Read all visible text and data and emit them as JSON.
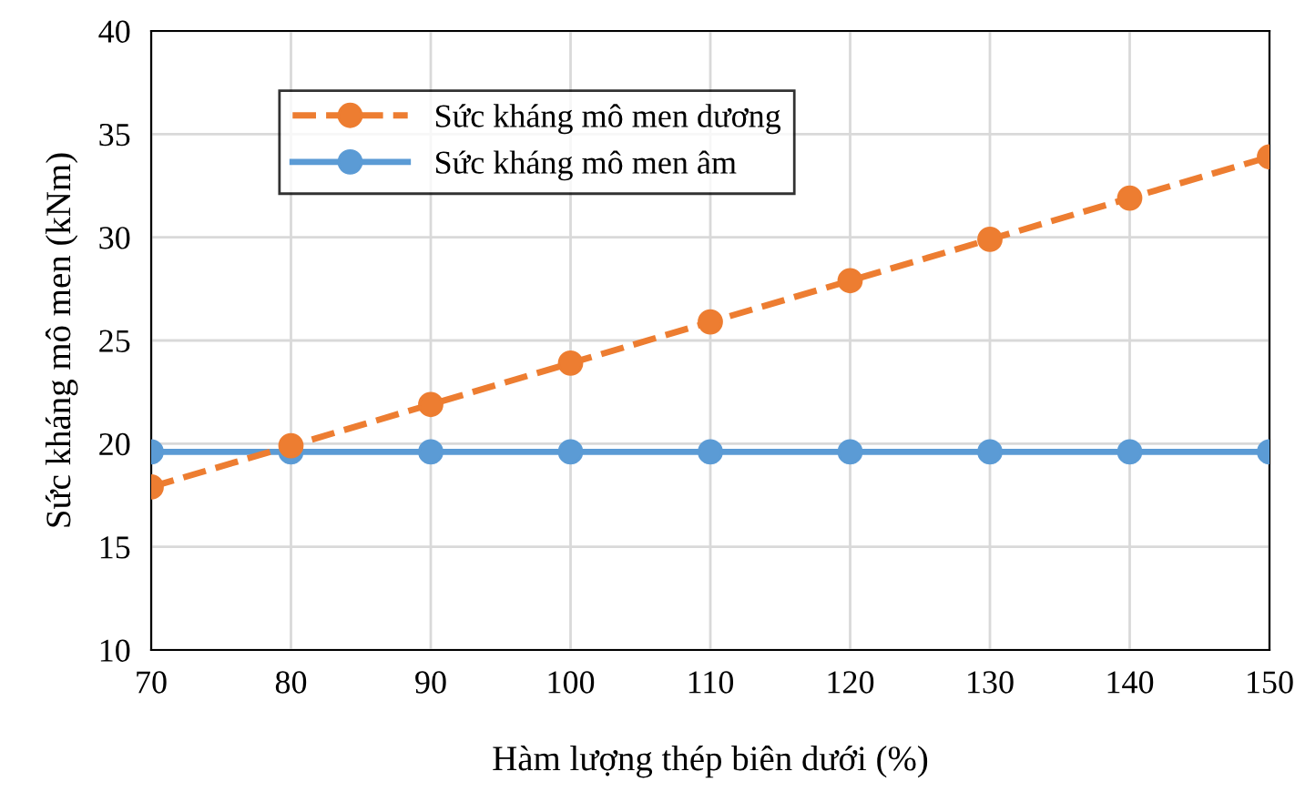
{
  "chart_data": {
    "type": "line",
    "xlabel": "Hàm lượng thép biên dưới (%)",
    "ylabel": "Sức kháng mô men (kNm)",
    "x": [
      70,
      80,
      90,
      100,
      110,
      120,
      130,
      140,
      150
    ],
    "series": [
      {
        "name": "Sức kháng mô men dương",
        "color": "#ed7d31",
        "line_style": "dashed",
        "values": [
          17.9,
          19.9,
          21.9,
          23.9,
          25.9,
          27.9,
          29.9,
          31.9,
          33.9
        ]
      },
      {
        "name": "Sức kháng mô men âm",
        "color": "#5b9bd5",
        "line_style": "solid",
        "values": [
          19.6,
          19.6,
          19.6,
          19.6,
          19.6,
          19.6,
          19.6,
          19.6,
          19.6
        ]
      }
    ],
    "xlim": [
      70,
      150
    ],
    "xticks": [
      70,
      80,
      90,
      100,
      110,
      120,
      130,
      140,
      150
    ],
    "ylim": [
      10,
      40
    ],
    "yticks": [
      10,
      15,
      20,
      25,
      30,
      35,
      40
    ],
    "grid": true,
    "legend": "top left",
    "marker": "circle"
  }
}
